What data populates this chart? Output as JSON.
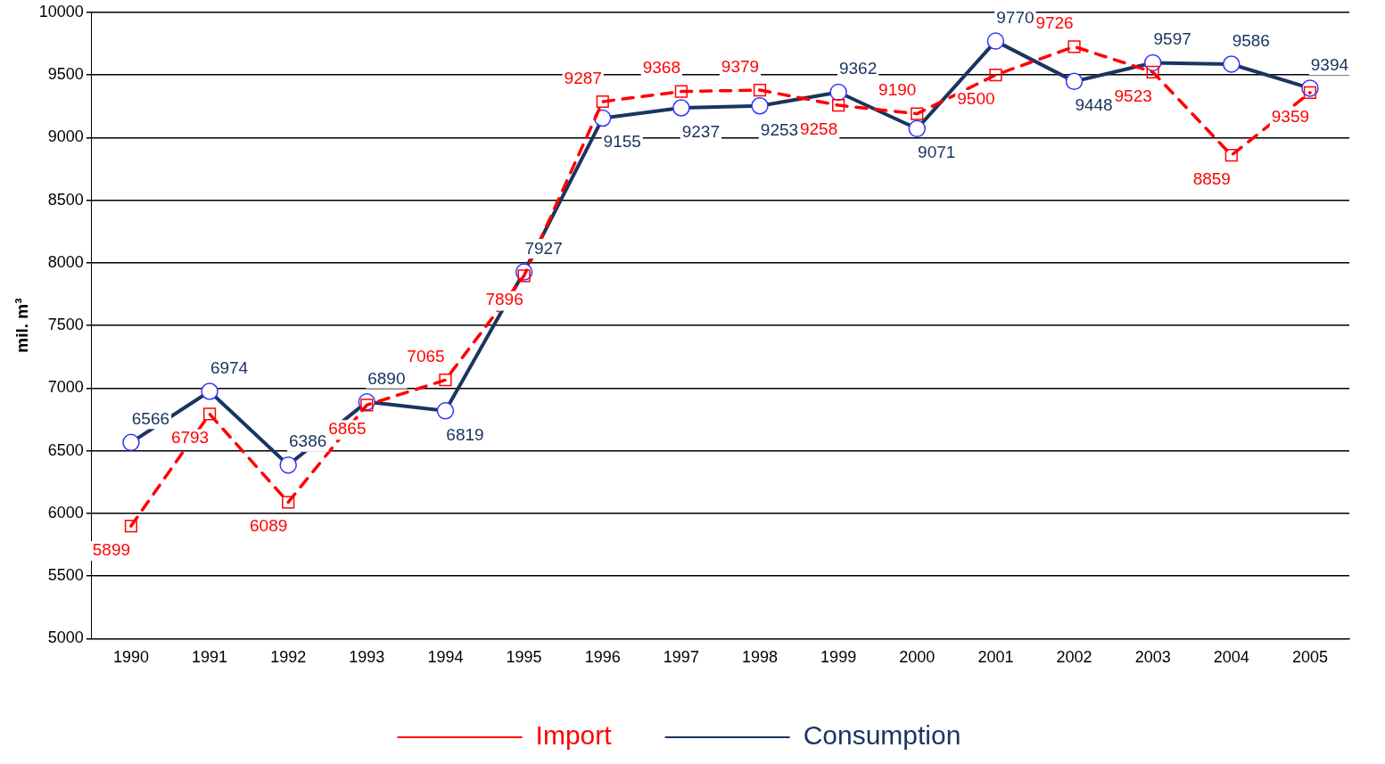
{
  "chart_data": {
    "type": "line",
    "ylabel": "mil. m³",
    "categories": [
      "1990",
      "1991",
      "1992",
      "1993",
      "1994",
      "1995",
      "1996",
      "1997",
      "1998",
      "1999",
      "2000",
      "2001",
      "2002",
      "2003",
      "2004",
      "2005"
    ],
    "series": [
      {
        "name": "Import",
        "color": "#ff0000",
        "line_style": "dashed",
        "marker": "square",
        "values": [
          5899,
          6793,
          6089,
          6865,
          7065,
          7896,
          9287,
          9368,
          9379,
          9258,
          9190,
          9500,
          9726,
          9523,
          8859,
          9359
        ]
      },
      {
        "name": "Consumption",
        "color": "#1a3560",
        "line_style": "solid",
        "marker": "circle",
        "values": [
          6566,
          6974,
          6386,
          6890,
          6819,
          7927,
          9155,
          9237,
          9253,
          9362,
          9071,
          9770,
          9448,
          9597,
          9586,
          9394
        ]
      }
    ],
    "ylim": [
      5000,
      10000
    ],
    "yticks": [
      5000,
      5500,
      6000,
      6500,
      7000,
      7500,
      8000,
      8500,
      9000,
      9500,
      10000
    ],
    "grid": "y",
    "legend": "bottom",
    "data_labels": true
  }
}
